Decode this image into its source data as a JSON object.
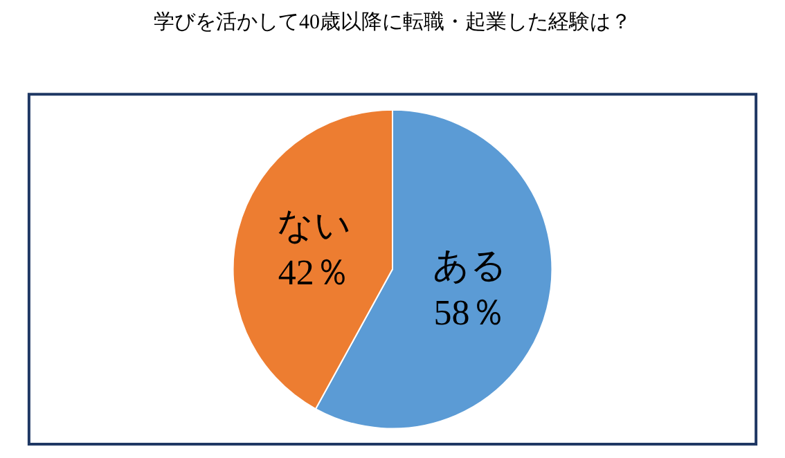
{
  "chart_data": {
    "type": "pie",
    "title": "学びを活かして40歳以降に転職・起業した経験は？",
    "categories": [
      "ある",
      "ない"
    ],
    "values": [
      58,
      42
    ],
    "colors": [
      "#5b9bd5",
      "#ed7d31"
    ],
    "value_labels": [
      "58％",
      "42％"
    ],
    "legend": false
  }
}
